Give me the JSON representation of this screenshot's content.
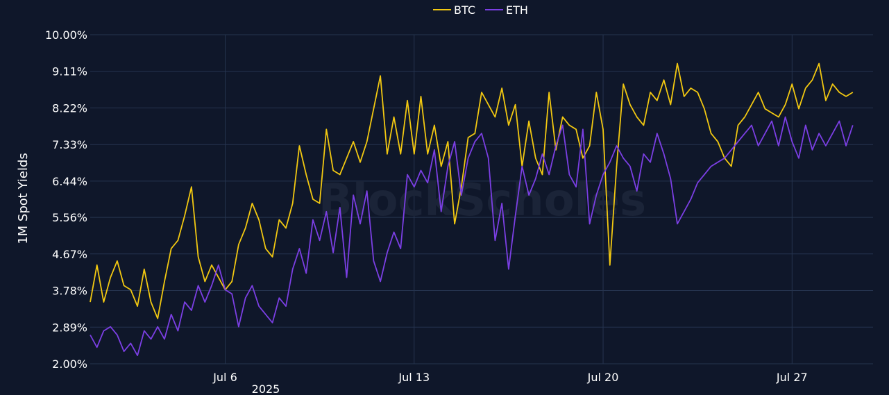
{
  "chart_data": {
    "type": "line",
    "title": "",
    "xlabel": "",
    "ylabel": "1M Spot Yields",
    "x_year_label": "2025",
    "xlim": [
      "2025-07-01",
      "2025-07-30"
    ],
    "ylim": [
      2.0,
      10.0
    ],
    "y_ticks": [
      "2.00%",
      "2.89%",
      "3.78%",
      "4.67%",
      "5.56%",
      "6.44%",
      "7.33%",
      "8.22%",
      "9.11%",
      "10.00%"
    ],
    "y_tick_values": [
      2.0,
      2.89,
      3.78,
      4.67,
      5.56,
      6.44,
      7.33,
      8.22,
      9.11,
      10.0
    ],
    "x_ticks": [
      "Jul 6",
      "Jul 13",
      "Jul 20",
      "Jul 27"
    ],
    "x_tick_dates": [
      "2025-07-06",
      "2025-07-13",
      "2025-07-20",
      "2025-07-27"
    ],
    "grid": true,
    "legend_position": "top-center",
    "watermark": "BlockScholes",
    "series": [
      {
        "name": "BTC",
        "color": "#f2c811",
        "points": [
          [
            "2025-07-01T00:00",
            3.5
          ],
          [
            "2025-07-01T06:00",
            4.4
          ],
          [
            "2025-07-01T12:00",
            3.5
          ],
          [
            "2025-07-01T18:00",
            4.1
          ],
          [
            "2025-07-02T00:00",
            4.5
          ],
          [
            "2025-07-02T06:00",
            3.9
          ],
          [
            "2025-07-02T12:00",
            3.8
          ],
          [
            "2025-07-02T18:00",
            3.4
          ],
          [
            "2025-07-03T00:00",
            4.3
          ],
          [
            "2025-07-03T06:00",
            3.5
          ],
          [
            "2025-07-03T12:00",
            3.1
          ],
          [
            "2025-07-03T18:00",
            4.0
          ],
          [
            "2025-07-04T00:00",
            4.8
          ],
          [
            "2025-07-04T06:00",
            5.0
          ],
          [
            "2025-07-04T12:00",
            5.6
          ],
          [
            "2025-07-04T18:00",
            6.3
          ],
          [
            "2025-07-05T00:00",
            4.6
          ],
          [
            "2025-07-05T06:00",
            4.0
          ],
          [
            "2025-07-05T12:00",
            4.4
          ],
          [
            "2025-07-05T18:00",
            4.1
          ],
          [
            "2025-07-06T00:00",
            3.8
          ],
          [
            "2025-07-06T06:00",
            4.0
          ],
          [
            "2025-07-06T12:00",
            4.9
          ],
          [
            "2025-07-06T18:00",
            5.3
          ],
          [
            "2025-07-07T00:00",
            5.9
          ],
          [
            "2025-07-07T06:00",
            5.5
          ],
          [
            "2025-07-07T12:00",
            4.8
          ],
          [
            "2025-07-07T18:00",
            4.6
          ],
          [
            "2025-07-08T00:00",
            5.5
          ],
          [
            "2025-07-08T06:00",
            5.3
          ],
          [
            "2025-07-08T12:00",
            5.9
          ],
          [
            "2025-07-08T18:00",
            7.3
          ],
          [
            "2025-07-09T00:00",
            6.6
          ],
          [
            "2025-07-09T06:00",
            6.0
          ],
          [
            "2025-07-09T12:00",
            5.9
          ],
          [
            "2025-07-09T18:00",
            7.7
          ],
          [
            "2025-07-10T00:00",
            6.7
          ],
          [
            "2025-07-10T06:00",
            6.6
          ],
          [
            "2025-07-10T12:00",
            7.0
          ],
          [
            "2025-07-10T18:00",
            7.4
          ],
          [
            "2025-07-11T00:00",
            6.9
          ],
          [
            "2025-07-11T06:00",
            7.4
          ],
          [
            "2025-07-11T12:00",
            8.2
          ],
          [
            "2025-07-11T18:00",
            9.0
          ],
          [
            "2025-07-12T00:00",
            7.1
          ],
          [
            "2025-07-12T06:00",
            8.0
          ],
          [
            "2025-07-12T12:00",
            7.1
          ],
          [
            "2025-07-12T18:00",
            8.4
          ],
          [
            "2025-07-13T00:00",
            7.1
          ],
          [
            "2025-07-13T06:00",
            8.5
          ],
          [
            "2025-07-13T12:00",
            7.1
          ],
          [
            "2025-07-13T18:00",
            7.8
          ],
          [
            "2025-07-14T00:00",
            6.8
          ],
          [
            "2025-07-14T06:00",
            7.4
          ],
          [
            "2025-07-14T12:00",
            5.4
          ],
          [
            "2025-07-14T18:00",
            6.3
          ],
          [
            "2025-07-15T00:00",
            7.5
          ],
          [
            "2025-07-15T06:00",
            7.6
          ],
          [
            "2025-07-15T12:00",
            8.6
          ],
          [
            "2025-07-15T18:00",
            8.3
          ],
          [
            "2025-07-16T00:00",
            8.0
          ],
          [
            "2025-07-16T06:00",
            8.7
          ],
          [
            "2025-07-16T12:00",
            7.8
          ],
          [
            "2025-07-16T18:00",
            8.3
          ],
          [
            "2025-07-17T00:00",
            6.8
          ],
          [
            "2025-07-17T06:00",
            7.9
          ],
          [
            "2025-07-17T12:00",
            7.0
          ],
          [
            "2025-07-17T18:00",
            6.6
          ],
          [
            "2025-07-18T00:00",
            8.6
          ],
          [
            "2025-07-18T06:00",
            7.2
          ],
          [
            "2025-07-18T12:00",
            8.0
          ],
          [
            "2025-07-18T18:00",
            7.8
          ],
          [
            "2025-07-19T00:00",
            7.7
          ],
          [
            "2025-07-19T06:00",
            7.0
          ],
          [
            "2025-07-19T12:00",
            7.3
          ],
          [
            "2025-07-19T18:00",
            8.6
          ],
          [
            "2025-07-20T00:00",
            7.7
          ],
          [
            "2025-07-20T06:00",
            4.4
          ],
          [
            "2025-07-20T12:00",
            6.8
          ],
          [
            "2025-07-20T18:00",
            8.8
          ],
          [
            "2025-07-21T00:00",
            8.3
          ],
          [
            "2025-07-21T06:00",
            8.0
          ],
          [
            "2025-07-21T12:00",
            7.8
          ],
          [
            "2025-07-21T18:00",
            8.6
          ],
          [
            "2025-07-22T00:00",
            8.4
          ],
          [
            "2025-07-22T06:00",
            8.9
          ],
          [
            "2025-07-22T12:00",
            8.3
          ],
          [
            "2025-07-22T18:00",
            9.3
          ],
          [
            "2025-07-23T00:00",
            8.5
          ],
          [
            "2025-07-23T06:00",
            8.7
          ],
          [
            "2025-07-23T12:00",
            8.6
          ],
          [
            "2025-07-23T18:00",
            8.2
          ],
          [
            "2025-07-24T00:00",
            7.6
          ],
          [
            "2025-07-24T06:00",
            7.4
          ],
          [
            "2025-07-24T12:00",
            7.0
          ],
          [
            "2025-07-24T18:00",
            6.8
          ],
          [
            "2025-07-25T00:00",
            7.8
          ],
          [
            "2025-07-25T06:00",
            8.0
          ],
          [
            "2025-07-25T12:00",
            8.3
          ],
          [
            "2025-07-25T18:00",
            8.6
          ],
          [
            "2025-07-26T00:00",
            8.2
          ],
          [
            "2025-07-26T06:00",
            8.1
          ],
          [
            "2025-07-26T12:00",
            8.0
          ],
          [
            "2025-07-26T18:00",
            8.3
          ],
          [
            "2025-07-27T00:00",
            8.8
          ],
          [
            "2025-07-27T06:00",
            8.2
          ],
          [
            "2025-07-27T12:00",
            8.7
          ],
          [
            "2025-07-27T18:00",
            8.9
          ],
          [
            "2025-07-28T00:00",
            9.3
          ],
          [
            "2025-07-28T06:00",
            8.4
          ],
          [
            "2025-07-28T12:00",
            8.8
          ],
          [
            "2025-07-28T18:00",
            8.6
          ],
          [
            "2025-07-29T00:00",
            8.5
          ],
          [
            "2025-07-29T06:00",
            8.6
          ]
        ]
      },
      {
        "name": "ETH",
        "color": "#7b3fe4",
        "points": [
          [
            "2025-07-01T00:00",
            2.7
          ],
          [
            "2025-07-01T06:00",
            2.4
          ],
          [
            "2025-07-01T12:00",
            2.8
          ],
          [
            "2025-07-01T18:00",
            2.9
          ],
          [
            "2025-07-02T00:00",
            2.7
          ],
          [
            "2025-07-02T06:00",
            2.3
          ],
          [
            "2025-07-02T12:00",
            2.5
          ],
          [
            "2025-07-02T18:00",
            2.2
          ],
          [
            "2025-07-03T00:00",
            2.8
          ],
          [
            "2025-07-03T06:00",
            2.6
          ],
          [
            "2025-07-03T12:00",
            2.9
          ],
          [
            "2025-07-03T18:00",
            2.6
          ],
          [
            "2025-07-04T00:00",
            3.2
          ],
          [
            "2025-07-04T06:00",
            2.8
          ],
          [
            "2025-07-04T12:00",
            3.5
          ],
          [
            "2025-07-04T18:00",
            3.3
          ],
          [
            "2025-07-05T00:00",
            3.9
          ],
          [
            "2025-07-05T06:00",
            3.5
          ],
          [
            "2025-07-05T12:00",
            3.9
          ],
          [
            "2025-07-05T18:00",
            4.4
          ],
          [
            "2025-07-06T00:00",
            3.8
          ],
          [
            "2025-07-06T06:00",
            3.7
          ],
          [
            "2025-07-06T12:00",
            2.9
          ],
          [
            "2025-07-06T18:00",
            3.6
          ],
          [
            "2025-07-07T00:00",
            3.9
          ],
          [
            "2025-07-07T06:00",
            3.4
          ],
          [
            "2025-07-07T12:00",
            3.2
          ],
          [
            "2025-07-07T18:00",
            3.0
          ],
          [
            "2025-07-08T00:00",
            3.6
          ],
          [
            "2025-07-08T06:00",
            3.4
          ],
          [
            "2025-07-08T12:00",
            4.3
          ],
          [
            "2025-07-08T18:00",
            4.8
          ],
          [
            "2025-07-09T00:00",
            4.2
          ],
          [
            "2025-07-09T06:00",
            5.5
          ],
          [
            "2025-07-09T12:00",
            5.0
          ],
          [
            "2025-07-09T18:00",
            5.7
          ],
          [
            "2025-07-10T00:00",
            4.7
          ],
          [
            "2025-07-10T06:00",
            5.8
          ],
          [
            "2025-07-10T12:00",
            4.1
          ],
          [
            "2025-07-10T18:00",
            6.1
          ],
          [
            "2025-07-11T00:00",
            5.4
          ],
          [
            "2025-07-11T06:00",
            6.2
          ],
          [
            "2025-07-11T12:00",
            4.5
          ],
          [
            "2025-07-11T18:00",
            4.0
          ],
          [
            "2025-07-12T00:00",
            4.7
          ],
          [
            "2025-07-12T06:00",
            5.2
          ],
          [
            "2025-07-12T12:00",
            4.8
          ],
          [
            "2025-07-12T18:00",
            6.6
          ],
          [
            "2025-07-13T00:00",
            6.3
          ],
          [
            "2025-07-13T06:00",
            6.7
          ],
          [
            "2025-07-13T12:00",
            6.4
          ],
          [
            "2025-07-13T18:00",
            7.2
          ],
          [
            "2025-07-14T00:00",
            5.7
          ],
          [
            "2025-07-14T06:00",
            6.8
          ],
          [
            "2025-07-14T12:00",
            7.4
          ],
          [
            "2025-07-14T18:00",
            6.1
          ],
          [
            "2025-07-15T00:00",
            7.0
          ],
          [
            "2025-07-15T06:00",
            7.4
          ],
          [
            "2025-07-15T12:00",
            7.6
          ],
          [
            "2025-07-15T18:00",
            7.0
          ],
          [
            "2025-07-16T00:00",
            5.0
          ],
          [
            "2025-07-16T06:00",
            5.9
          ],
          [
            "2025-07-16T12:00",
            4.3
          ],
          [
            "2025-07-16T18:00",
            5.6
          ],
          [
            "2025-07-17T00:00",
            6.8
          ],
          [
            "2025-07-17T06:00",
            6.1
          ],
          [
            "2025-07-17T12:00",
            6.5
          ],
          [
            "2025-07-17T18:00",
            7.1
          ],
          [
            "2025-07-18T00:00",
            6.6
          ],
          [
            "2025-07-18T06:00",
            7.3
          ],
          [
            "2025-07-18T12:00",
            7.8
          ],
          [
            "2025-07-18T18:00",
            6.6
          ],
          [
            "2025-07-19T00:00",
            6.3
          ],
          [
            "2025-07-19T06:00",
            7.7
          ],
          [
            "2025-07-19T12:00",
            5.4
          ],
          [
            "2025-07-19T18:00",
            6.1
          ],
          [
            "2025-07-20T00:00",
            6.6
          ],
          [
            "2025-07-20T06:00",
            6.9
          ],
          [
            "2025-07-20T12:00",
            7.3
          ],
          [
            "2025-07-20T18:00",
            7.0
          ],
          [
            "2025-07-21T00:00",
            6.8
          ],
          [
            "2025-07-21T06:00",
            6.2
          ],
          [
            "2025-07-21T12:00",
            7.1
          ],
          [
            "2025-07-21T18:00",
            6.9
          ],
          [
            "2025-07-22T00:00",
            7.6
          ],
          [
            "2025-07-22T06:00",
            7.1
          ],
          [
            "2025-07-22T12:00",
            6.5
          ],
          [
            "2025-07-22T18:00",
            5.4
          ],
          [
            "2025-07-23T00:00",
            5.7
          ],
          [
            "2025-07-23T06:00",
            6.0
          ],
          [
            "2025-07-23T12:00",
            6.4
          ],
          [
            "2025-07-23T18:00",
            6.6
          ],
          [
            "2025-07-24T00:00",
            6.8
          ],
          [
            "2025-07-24T06:00",
            6.9
          ],
          [
            "2025-07-24T12:00",
            7.0
          ],
          [
            "2025-07-24T18:00",
            7.2
          ],
          [
            "2025-07-25T00:00",
            7.4
          ],
          [
            "2025-07-25T06:00",
            7.6
          ],
          [
            "2025-07-25T12:00",
            7.8
          ],
          [
            "2025-07-25T18:00",
            7.3
          ],
          [
            "2025-07-26T00:00",
            7.6
          ],
          [
            "2025-07-26T06:00",
            7.9
          ],
          [
            "2025-07-26T12:00",
            7.3
          ],
          [
            "2025-07-26T18:00",
            8.0
          ],
          [
            "2025-07-27T00:00",
            7.4
          ],
          [
            "2025-07-27T06:00",
            7.0
          ],
          [
            "2025-07-27T12:00",
            7.8
          ],
          [
            "2025-07-27T18:00",
            7.2
          ],
          [
            "2025-07-28T00:00",
            7.6
          ],
          [
            "2025-07-28T06:00",
            7.3
          ],
          [
            "2025-07-28T12:00",
            7.6
          ],
          [
            "2025-07-28T18:00",
            7.9
          ],
          [
            "2025-07-29T00:00",
            7.3
          ],
          [
            "2025-07-29T06:00",
            7.8
          ]
        ]
      }
    ]
  }
}
